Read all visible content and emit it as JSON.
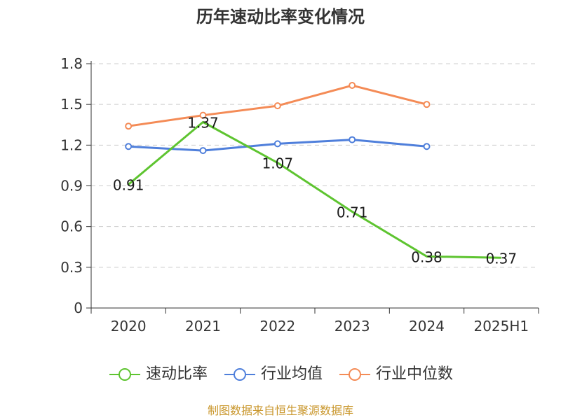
{
  "chart_data": {
    "type": "line",
    "title": "历年速动比率变化情况",
    "categories": [
      "2020",
      "2021",
      "2022",
      "2023",
      "2024",
      "2025H1"
    ],
    "y_ticks": [
      "0",
      "0.3",
      "0.6",
      "0.9",
      "1.2",
      "1.5",
      "1.8"
    ],
    "ylim": [
      0,
      1.8
    ],
    "grid": true,
    "legend_position": "bottom",
    "series": [
      {
        "name": "速动比率",
        "color": "#5ec430",
        "values": [
          0.91,
          1.37,
          1.07,
          0.71,
          0.38,
          0.37
        ],
        "labels": [
          "0.91",
          "1.37",
          "1.07",
          "0.71",
          "0.38",
          "0.37"
        ],
        "show_labels": true,
        "show_markers": false
      },
      {
        "name": "行业均值",
        "color": "#4f7fdb",
        "values": [
          1.19,
          1.16,
          1.21,
          1.24,
          1.19,
          null
        ],
        "show_labels": false,
        "show_markers": true
      },
      {
        "name": "行业中位数",
        "color": "#f48b56",
        "values": [
          1.34,
          1.42,
          1.49,
          1.64,
          1.5,
          null
        ],
        "show_labels": false,
        "show_markers": true
      }
    ]
  },
  "legend": {
    "items": [
      {
        "label": "速动比率",
        "color": "#5ec430"
      },
      {
        "label": "行业均值",
        "color": "#4f7fdb"
      },
      {
        "label": "行业中位数",
        "color": "#f48b56"
      }
    ]
  },
  "footer": {
    "text": "制图数据来自恒生聚源数据库",
    "color": "#c9962b"
  }
}
